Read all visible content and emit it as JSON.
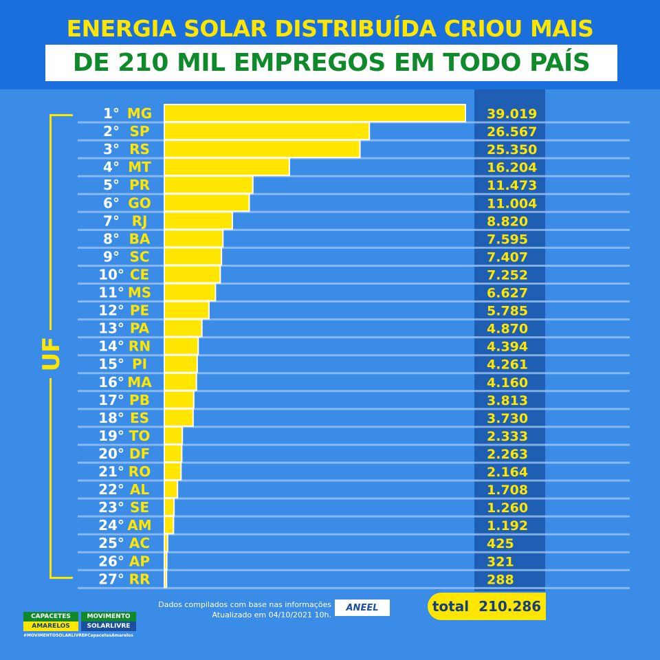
{
  "header": {
    "line1": "ENERGIA SOLAR DISTRIBUÍDA CRIOU MAIS",
    "line2": "DE 210 MIL EMPREGOS EM TODO PAÍS"
  },
  "axis_label": "UF",
  "colors": {
    "header_bg": "#1b6fdc",
    "background": "#3b8ce6",
    "bar": "#ffe600",
    "title_green": "#0f8a2a",
    "value_column": "#1f5fb3"
  },
  "chart_data": {
    "type": "bar",
    "orientation": "horizontal",
    "ranks": [
      "1°",
      "2°",
      "3°",
      "4°",
      "5°",
      "6°",
      "7°",
      "8°",
      "9°",
      "10°",
      "11°",
      "12°",
      "13°",
      "14°",
      "15°",
      "16°",
      "17°",
      "18°",
      "19°",
      "20°",
      "21°",
      "22°",
      "23°",
      "24°",
      "25°",
      "26°",
      "27°"
    ],
    "categories": [
      "MG",
      "SP",
      "RS",
      "MT",
      "PR",
      "GO",
      "RJ",
      "BA",
      "SC",
      "CE",
      "MS",
      "PE",
      "PA",
      "RN",
      "PI",
      "MA",
      "PB",
      "ES",
      "TO",
      "DF",
      "RO",
      "AL",
      "SE",
      "AM",
      "AC",
      "AP",
      "RR"
    ],
    "values": [
      39019,
      26567,
      25350,
      16204,
      11473,
      11004,
      8820,
      7595,
      7407,
      7252,
      6627,
      5785,
      4870,
      4394,
      4261,
      4160,
      3813,
      3730,
      2333,
      2263,
      2164,
      1708,
      1260,
      1192,
      425,
      321,
      288
    ],
    "value_labels": [
      "39.019",
      "26.567",
      "25.350",
      "16.204",
      "11.473",
      "11.004",
      "8.820",
      "7.595",
      "7.407",
      "7.252",
      "6.627",
      "5.785",
      "4.870",
      "4.394",
      "4.261",
      "4.160",
      "3.813",
      "3.730",
      "2.333",
      "2.263",
      "2.164",
      "1.708",
      "1.260",
      "1.192",
      "425",
      "321",
      "288"
    ],
    "ylabel": "UF"
  },
  "total": {
    "label": "total",
    "value": "210.286"
  },
  "footnote": {
    "line1": "Dados compilados com base nas informações",
    "line2": "Atualizado em 04/10/2021 10h."
  },
  "source_logo": "ANEEL",
  "logos": [
    {
      "line1": "CAPACETES",
      "line2": "AMARELOS",
      "tag": "#MOVIMENTOSOLARLIVRE"
    },
    {
      "line1": "MOVIMENTO",
      "line2": "SOLARLIVRE",
      "tag": "#CapacetesAmarelos"
    }
  ]
}
